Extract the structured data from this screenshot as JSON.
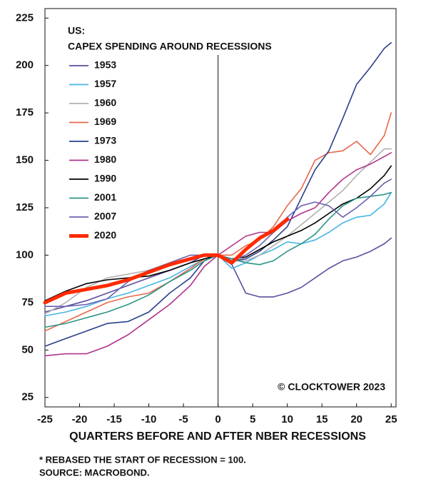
{
  "chart_data": {
    "type": "line",
    "title": "US:",
    "subtitle": "CAPEX SPENDING AROUND RECESSIONS",
    "x_label": "QUARTERS BEFORE AND AFTER NBER RECESSIONS",
    "annotation": "© CLOCKTOWER 2023",
    "notes": [
      "* REBASED THE START OF RECESSION = 100.",
      "SOURCE: MACROBOND."
    ],
    "x": [
      -25,
      -22,
      -19,
      -16,
      -13,
      -10,
      -7,
      -4,
      -2,
      0,
      2,
      4,
      6,
      8,
      10,
      12,
      14,
      16,
      18,
      20,
      22,
      24,
      25
    ],
    "xlim": [
      -25,
      25.7
    ],
    "ylim": [
      20,
      230
    ],
    "xticks": [
      -25,
      -20,
      -15,
      -10,
      -5,
      0,
      5,
      10,
      15,
      20,
      25
    ],
    "yticks": [
      25,
      50,
      75,
      100,
      125,
      150,
      175,
      200,
      225
    ],
    "grid": false,
    "legend": "upper left",
    "series": [
      {
        "name": "1953",
        "color": "#5a4fa0",
        "values": [
          70,
          73,
          76,
          80,
          84,
          88,
          92,
          96,
          100,
          100,
          95,
          80,
          78,
          78,
          80,
          83,
          88,
          93,
          97,
          99,
          102,
          106,
          109
        ]
      },
      {
        "name": "1957",
        "color": "#45b6e6",
        "values": [
          68,
          70,
          73,
          77,
          80,
          84,
          88,
          94,
          98,
          100,
          93,
          96,
          100,
          103,
          107,
          106,
          108,
          112,
          117,
          120,
          121,
          127,
          133
        ]
      },
      {
        "name": "1960",
        "color": "#b0b0b0",
        "values": [
          69,
          75,
          83,
          88,
          90,
          92,
          95,
          98,
          100,
          100,
          97,
          97,
          100,
          105,
          110,
          116,
          122,
          128,
          134,
          142,
          149,
          156,
          156
        ]
      },
      {
        "name": "1969",
        "color": "#e8684a",
        "values": [
          60,
          65,
          70,
          75,
          78,
          80,
          86,
          93,
          98,
          100,
          100,
          105,
          108,
          115,
          126,
          135,
          150,
          154,
          155,
          160,
          153,
          163,
          175
        ]
      },
      {
        "name": "1973",
        "color": "#2a3f8a",
        "values": [
          52,
          56,
          60,
          64,
          65,
          70,
          80,
          88,
          97,
          100,
          97,
          98,
          102,
          108,
          115,
          130,
          145,
          155,
          172,
          190,
          199,
          209,
          212
        ]
      },
      {
        "name": "1980",
        "color": "#b0338a",
        "values": [
          47,
          48,
          48,
          52,
          58,
          66,
          74,
          84,
          94,
          100,
          105,
          110,
          112,
          112,
          118,
          122,
          125,
          133,
          140,
          145,
          148,
          152,
          154
        ]
      },
      {
        "name": "1990",
        "color": "#000000",
        "values": [
          76,
          81,
          85,
          87,
          88,
          89,
          92,
          96,
          98,
          100,
          98,
          99,
          103,
          107,
          110,
          113,
          117,
          122,
          127,
          130,
          135,
          142,
          147
        ]
      },
      {
        "name": "2001",
        "color": "#2b9488",
        "values": [
          62,
          64,
          67,
          70,
          74,
          79,
          86,
          92,
          97,
          100,
          98,
          96,
          95,
          97,
          102,
          106,
          111,
          119,
          126,
          130,
          131,
          132,
          133
        ]
      },
      {
        "name": "2007",
        "color": "#6b62b0",
        "values": [
          73,
          73,
          74,
          77,
          86,
          92,
          96,
          100,
          100,
          100,
          97,
          100,
          105,
          112,
          120,
          126,
          128,
          126,
          120,
          125,
          131,
          138,
          140
        ]
      },
      {
        "name": "2020",
        "color": "#ff2a00",
        "width": 5,
        "values": [
          75,
          80,
          82,
          84,
          87,
          91,
          95,
          98,
          100,
          100,
          96,
          103,
          109,
          113,
          119,
          null,
          null,
          null,
          null,
          null,
          null,
          null,
          null
        ]
      }
    ]
  }
}
